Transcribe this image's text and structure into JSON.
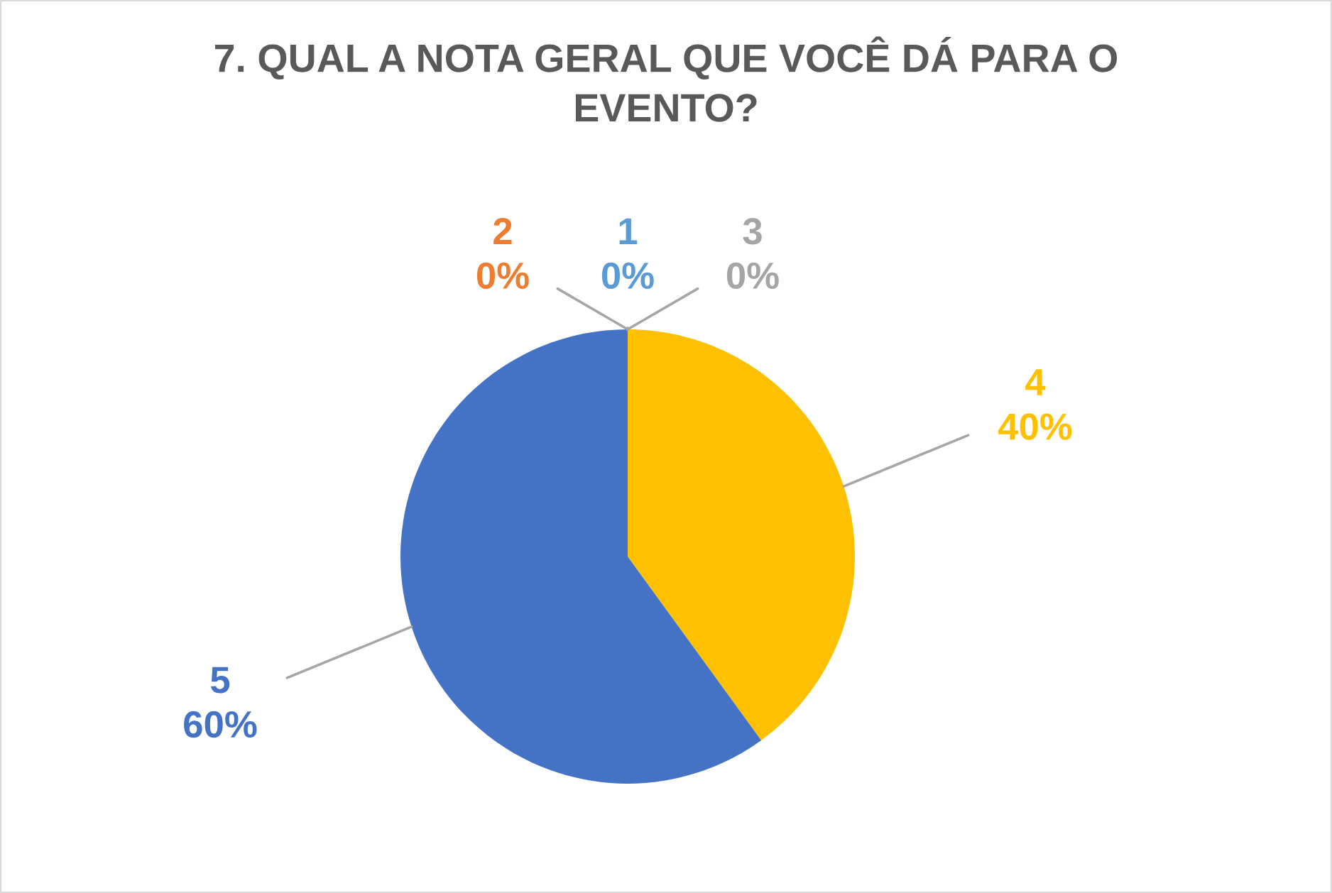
{
  "chart_data": {
    "type": "pie",
    "title": "7. QUAL A NOTA GERAL QUE VOCÊ DÁ PARA O EVENTO?",
    "categories": [
      "1",
      "2",
      "3",
      "4",
      "5"
    ],
    "values": [
      0,
      0,
      0,
      40,
      60
    ],
    "value_labels": [
      "0%",
      "0%",
      "0%",
      "40%",
      "60%"
    ],
    "colors": [
      "#5b9bd5",
      "#ed7d31",
      "#a5a5a5",
      "#ffc000",
      "#4472c4"
    ]
  }
}
